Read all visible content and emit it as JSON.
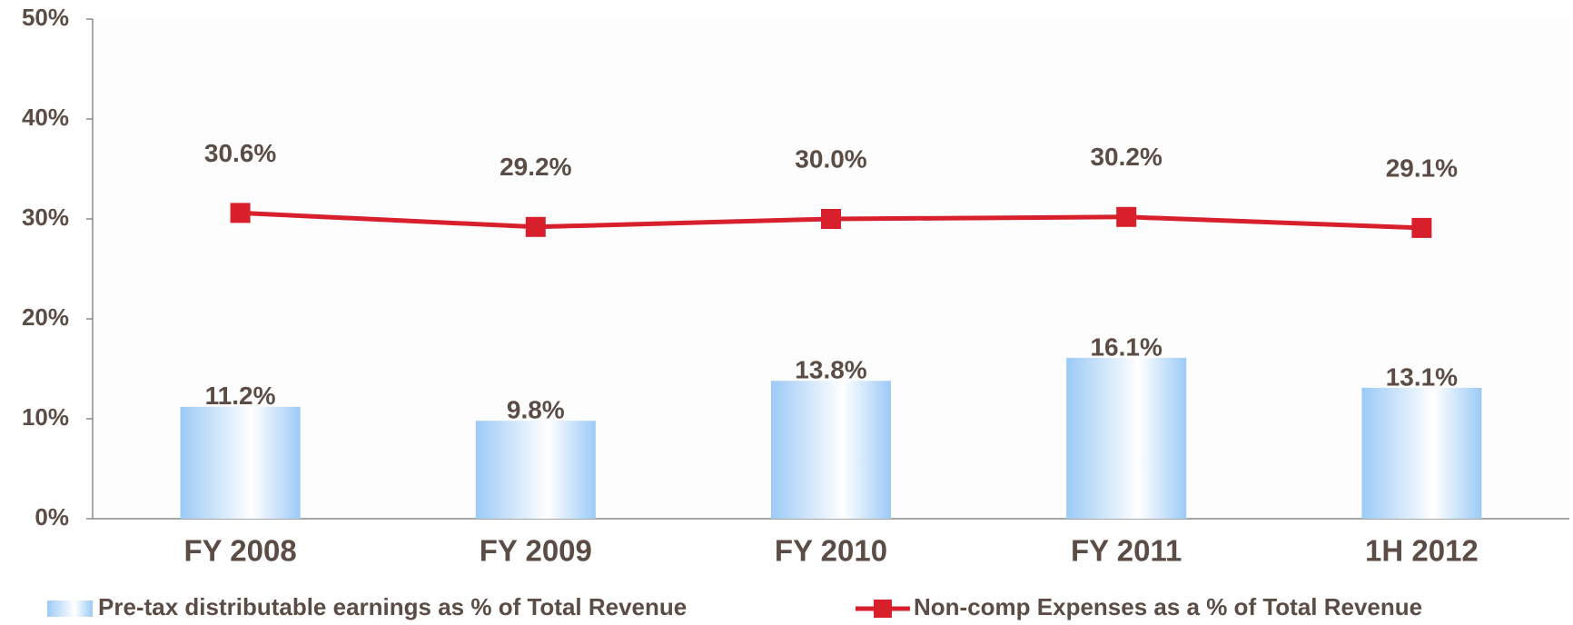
{
  "chart_data": {
    "type": "bar",
    "categories": [
      "FY 2008",
      "FY 2009",
      "FY 2010",
      "FY 2011",
      "1H 2012"
    ],
    "series": [
      {
        "name": "Pre-tax distributable earnings as % of Total Revenue",
        "type": "bar",
        "color": "#9ccaf6",
        "values": [
          11.2,
          9.8,
          13.8,
          16.1,
          13.1
        ],
        "value_labels": [
          "11.2%",
          "9.8%",
          "13.8%",
          "16.1%",
          "13.1%"
        ]
      },
      {
        "name": "Non-comp Expenses as a % of Total Revenue",
        "type": "line",
        "color": "#d7202c",
        "values": [
          30.6,
          29.2,
          30.0,
          30.2,
          29.1
        ],
        "value_labels": [
          "30.6%",
          "29.2%",
          "30.0%",
          "30.2%",
          "29.1%"
        ]
      }
    ],
    "ylim": [
      0,
      50
    ],
    "yticks": [
      {
        "value": 0,
        "label": "0%"
      },
      {
        "value": 10,
        "label": "10%"
      },
      {
        "value": 20,
        "label": "20%"
      },
      {
        "value": 30,
        "label": "30%"
      },
      {
        "value": 40,
        "label": "40%"
      },
      {
        "value": 50,
        "label": "50%"
      }
    ],
    "legend": "bottom"
  }
}
